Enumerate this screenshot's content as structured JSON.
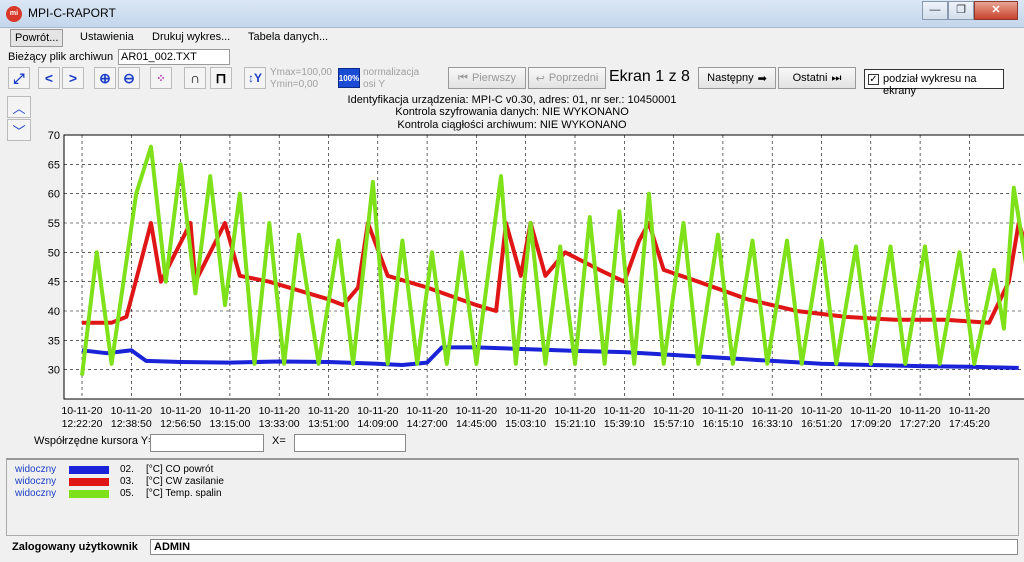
{
  "window": {
    "title": "MPI-C-RAPORT",
    "icon_text": "mi",
    "minimize": "—",
    "maximize": "❐",
    "close": "✕"
  },
  "menu": {
    "items": [
      "Powrót...",
      "Ustawienia",
      "Drukuj wykres...",
      "Tabela danych..."
    ]
  },
  "file": {
    "label": "Bieżący plik archiwun",
    "name": "AR01_002.TXT"
  },
  "toolbar": {
    "ymax": "Ymax=100,00",
    "ymin": "Ymin=0,00",
    "pct": "100%",
    "normalize": "normalizacja",
    "normalize_sub": "osi Y",
    "first": "Pierwszy",
    "prev": "Poprzedni",
    "screen": "Ekran 1 z 8",
    "next": "Następny",
    "last": "Ostatni",
    "split_label": "podział wykresu na ekrany",
    "split_checked": "✓"
  },
  "header": {
    "line1": "Identyfikacja urządzenia: MPI-C v0.30, adres: 01, nr ser.: 10450001",
    "line2": "Kontrola szyfrowania danych: NIE WYKONANO",
    "line3": "Kontrola ciągłości archiwum: NIE WYKONANO"
  },
  "cursor": {
    "y_label": "Współrzędne kursora Y=",
    "x_label": "X="
  },
  "legend": [
    {
      "visible": "widoczny",
      "num": "02.",
      "name": "[°C] CO powrót",
      "color": "#1a23d8"
    },
    {
      "visible": "widoczny",
      "num": "03.",
      "name": "[°C] CW zasilanie",
      "color": "#e01616"
    },
    {
      "visible": "widoczny",
      "num": "05.",
      "name": "[°C] Temp. spalin",
      "color": "#7ee11a"
    }
  ],
  "status": {
    "label": "Zalogowany użytkownik",
    "user": "ADMIN"
  },
  "chart_data": {
    "type": "line",
    "ylim": [
      25,
      70
    ],
    "yticks": [
      30,
      35,
      40,
      45,
      50,
      55,
      60,
      65,
      70
    ],
    "grid": true,
    "x_date": "10-11-20",
    "x_ticks": [
      "12:22:20",
      "12:38:50",
      "12:56:50",
      "13:15:00",
      "13:33:00",
      "13:51:00",
      "14:09:00",
      "14:27:00",
      "14:45:00",
      "15:03:10",
      "15:21:10",
      "15:39:10",
      "15:57:10",
      "16:15:10",
      "16:33:10",
      "16:51:20",
      "17:09:20",
      "17:27:20",
      "17:45:20"
    ],
    "series": [
      {
        "name": "[°C] CO powrót",
        "color": "#1a23d8",
        "points": [
          [
            0,
            33.3
          ],
          [
            0.5,
            32.8
          ],
          [
            1.0,
            33.3
          ],
          [
            1.3,
            31.5
          ],
          [
            2,
            31.3
          ],
          [
            3,
            31.2
          ],
          [
            4,
            31.4
          ],
          [
            5,
            31.3
          ],
          [
            6,
            31.0
          ],
          [
            6.5,
            30.8
          ],
          [
            7,
            31.2
          ],
          [
            7.3,
            33.8
          ],
          [
            8,
            33.8
          ],
          [
            9,
            33.5
          ],
          [
            10,
            33.2
          ],
          [
            11,
            33.0
          ],
          [
            12,
            32.5
          ],
          [
            13,
            32.0
          ],
          [
            14,
            31.5
          ],
          [
            15,
            31.0
          ],
          [
            16,
            30.8
          ],
          [
            17,
            30.6
          ],
          [
            18,
            30.5
          ],
          [
            19,
            30.3
          ]
        ]
      },
      {
        "name": "[°C] CW zasilanie",
        "color": "#e01616",
        "points": [
          [
            0,
            38
          ],
          [
            0.6,
            38
          ],
          [
            0.9,
            39
          ],
          [
            1.4,
            55
          ],
          [
            1.6,
            45
          ],
          [
            2.2,
            55
          ],
          [
            2.3,
            45
          ],
          [
            2.9,
            55
          ],
          [
            3.2,
            46
          ],
          [
            3.8,
            45
          ],
          [
            4.6,
            43
          ],
          [
            5.0,
            42
          ],
          [
            5.3,
            41
          ],
          [
            5.6,
            44
          ],
          [
            5.8,
            55
          ],
          [
            6.2,
            46
          ],
          [
            7.0,
            44
          ],
          [
            8.0,
            41
          ],
          [
            8.4,
            40
          ],
          [
            8.6,
            55
          ],
          [
            8.9,
            46
          ],
          [
            9.1,
            55
          ],
          [
            9.4,
            46
          ],
          [
            9.8,
            50
          ],
          [
            10.5,
            47
          ],
          [
            11.0,
            45
          ],
          [
            11.3,
            52
          ],
          [
            11.5,
            55
          ],
          [
            11.8,
            47
          ],
          [
            12.5,
            45
          ],
          [
            13.5,
            42
          ],
          [
            14.5,
            40
          ],
          [
            15.5,
            39
          ],
          [
            16.5,
            38.5
          ],
          [
            17.5,
            38.5
          ],
          [
            18.4,
            38
          ],
          [
            18.8,
            45
          ],
          [
            19.0,
            55
          ],
          [
            19.2,
            50
          ],
          [
            19.3,
            45
          ]
        ]
      },
      {
        "name": "[°C] Temp. spalin",
        "color": "#7ee11a",
        "points": [
          [
            0,
            29
          ],
          [
            0.3,
            50
          ],
          [
            0.6,
            31
          ],
          [
            1.1,
            60
          ],
          [
            1.4,
            68
          ],
          [
            1.7,
            45
          ],
          [
            2.0,
            65
          ],
          [
            2.3,
            43
          ],
          [
            2.6,
            63
          ],
          [
            2.9,
            41
          ],
          [
            3.2,
            60
          ],
          [
            3.5,
            31
          ],
          [
            3.8,
            55
          ],
          [
            4.1,
            31
          ],
          [
            4.4,
            53
          ],
          [
            4.8,
            31
          ],
          [
            5.2,
            52
          ],
          [
            5.5,
            31
          ],
          [
            5.9,
            62
          ],
          [
            6.2,
            31
          ],
          [
            6.5,
            52
          ],
          [
            6.8,
            31
          ],
          [
            7.1,
            50
          ],
          [
            7.4,
            31
          ],
          [
            7.7,
            50
          ],
          [
            8.0,
            31
          ],
          [
            8.5,
            63
          ],
          [
            8.8,
            31
          ],
          [
            9.1,
            55
          ],
          [
            9.4,
            31
          ],
          [
            9.7,
            51
          ],
          [
            10.0,
            31
          ],
          [
            10.3,
            56
          ],
          [
            10.6,
            31
          ],
          [
            10.9,
            57
          ],
          [
            11.2,
            31
          ],
          [
            11.5,
            60
          ],
          [
            11.8,
            31
          ],
          [
            12.2,
            55
          ],
          [
            12.5,
            31
          ],
          [
            12.9,
            53
          ],
          [
            13.2,
            31
          ],
          [
            13.6,
            52
          ],
          [
            13.9,
            31
          ],
          [
            14.3,
            52
          ],
          [
            14.6,
            31
          ],
          [
            15.0,
            52
          ],
          [
            15.3,
            31
          ],
          [
            15.7,
            51
          ],
          [
            16.0,
            31
          ],
          [
            16.4,
            51
          ],
          [
            16.7,
            31
          ],
          [
            17.1,
            51
          ],
          [
            17.4,
            31
          ],
          [
            17.8,
            50
          ],
          [
            18.1,
            31
          ],
          [
            18.5,
            47
          ],
          [
            18.7,
            37
          ],
          [
            18.9,
            61
          ],
          [
            19.3,
            40
          ]
        ]
      }
    ]
  }
}
